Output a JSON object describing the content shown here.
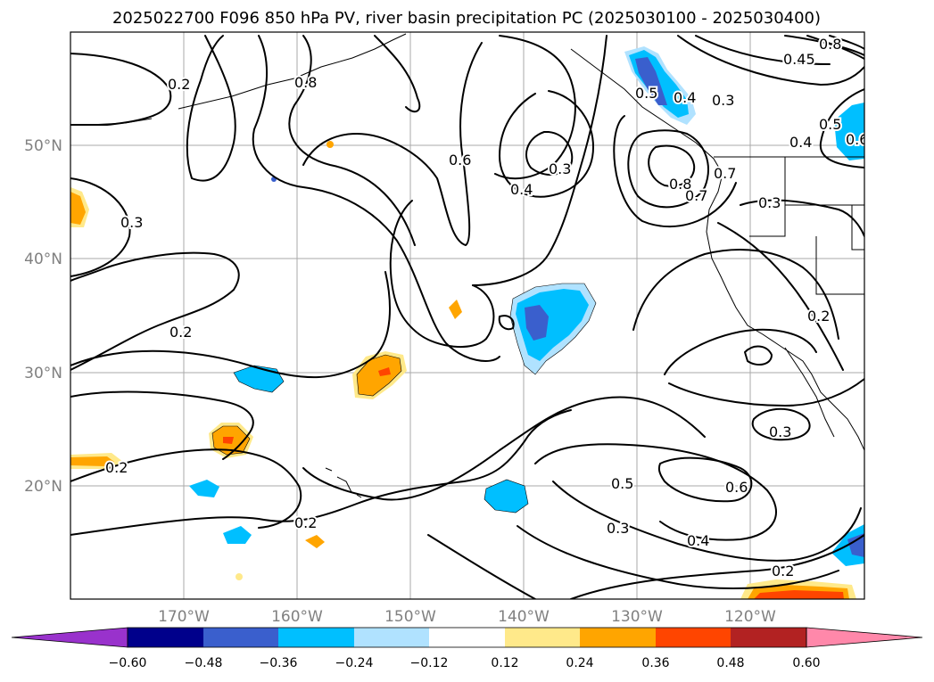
{
  "title": "2025022700 F096 850 hPa PV, river basin precipitation PC (2025030100 - 2025030400)",
  "lon_ticks": [
    "170°W",
    "160°W",
    "150°W",
    "140°W",
    "130°W",
    "120°W"
  ],
  "lat_ticks": [
    "50°N",
    "40°N",
    "30°N",
    "20°N"
  ],
  "colorbar": {
    "ticks": [
      "−0.60",
      "−0.48",
      "−0.36",
      "−0.24",
      "−0.12",
      "0.12",
      "0.24",
      "0.36",
      "0.48",
      "0.60"
    ],
    "colors": [
      "#9932cc",
      "#00008b",
      "#3a5fcd",
      "#00bfff",
      "#b0e2ff",
      "#ffffff",
      "#ffe98a",
      "#ffa500",
      "#ff4500",
      "#b22222",
      "#ff88aa"
    ]
  },
  "contour_labels": [
    "0.2",
    "0.2",
    "0.2",
    "0.2",
    "0.2",
    "0.2",
    "0.3",
    "0.3",
    "0.3",
    "0.3",
    "0.3",
    "0.3",
    "0.4",
    "0.4",
    "0.4",
    "0.4",
    "0.5",
    "0.5",
    "0.5",
    "0.6",
    "0.6",
    "0.6",
    "0.7",
    "0.7",
    "0.8",
    "0.8",
    "0.8",
    "0.45"
  ]
}
